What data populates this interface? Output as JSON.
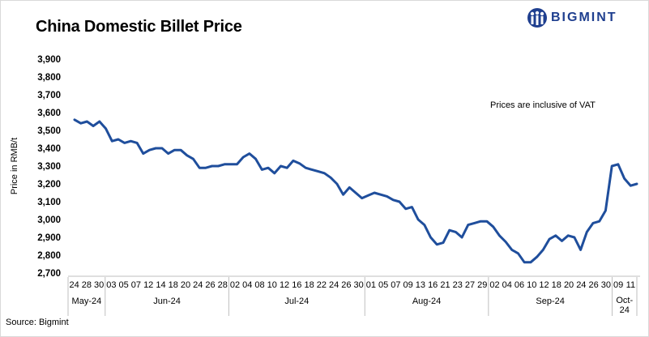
{
  "header": {
    "title": "China Domestic Billet Price",
    "brand": "BIGMINT"
  },
  "footer": {
    "source": "Source: Bigmint"
  },
  "chart_data": {
    "type": "line",
    "title": "China Domestic Billet Price",
    "ylabel": "Price in RMB/t",
    "xlabel": "",
    "ylim": [
      2700,
      3900
    ],
    "yticks": [
      "2,700",
      "2,800",
      "2,900",
      "3,000",
      "3,100",
      "3,200",
      "3,300",
      "3,400",
      "3,500",
      "3,600",
      "3,700",
      "3,800",
      "3,900"
    ],
    "annotation": "Prices are inclusive of VAT",
    "line_color": "#1f4e9c",
    "grid": false,
    "day_labels": [
      "24",
      "28",
      "30",
      "03",
      "05",
      "07",
      "12",
      "14",
      "18",
      "20",
      "24",
      "26",
      "28",
      "02",
      "04",
      "08",
      "10",
      "12",
      "16",
      "18",
      "22",
      "24",
      "26",
      "30",
      "01",
      "05",
      "07",
      "09",
      "13",
      "16",
      "21",
      "23",
      "27",
      "29",
      "02",
      "04",
      "06",
      "10",
      "12",
      "18",
      "20",
      "24",
      "26",
      "30",
      "09",
      "11"
    ],
    "month_groups": [
      {
        "label": "May-24",
        "start": 0,
        "end": 2
      },
      {
        "label": "Jun-24",
        "start": 3,
        "end": 12
      },
      {
        "label": "Jul-24",
        "start": 13,
        "end": 23
      },
      {
        "label": "Aug-24",
        "start": 24,
        "end": 33
      },
      {
        "label": "Sep-24",
        "start": 34,
        "end": 43
      },
      {
        "label": "Oct-24",
        "start": 44,
        "end": 45
      }
    ],
    "series": [
      {
        "name": "China Domestic Billet Price",
        "values": [
          3560,
          3540,
          3550,
          3525,
          3550,
          3510,
          3440,
          3450,
          3430,
          3440,
          3430,
          3370,
          3390,
          3400,
          3400,
          3370,
          3390,
          3390,
          3360,
          3340,
          3290,
          3290,
          3300,
          3300,
          3310,
          3310,
          3310,
          3350,
          3370,
          3340,
          3280,
          3290,
          3260,
          3300,
          3290,
          3330,
          3315,
          3290,
          3280,
          3270,
          3260,
          3235,
          3200,
          3140,
          3180,
          3150,
          3120,
          3135,
          3150,
          3140,
          3130,
          3110,
          3100,
          3060,
          3070,
          3000,
          2970,
          2900,
          2860,
          2870,
          2940,
          2930,
          2900,
          2970,
          2980,
          2990,
          2990,
          2960,
          2910,
          2875,
          2830,
          2810,
          2760,
          2760,
          2790,
          2830,
          2890,
          2910,
          2880,
          2910,
          2900,
          2830,
          2930,
          2980,
          2990,
          3050,
          3300,
          3310,
          3230,
          3190,
          3200
        ]
      }
    ]
  }
}
